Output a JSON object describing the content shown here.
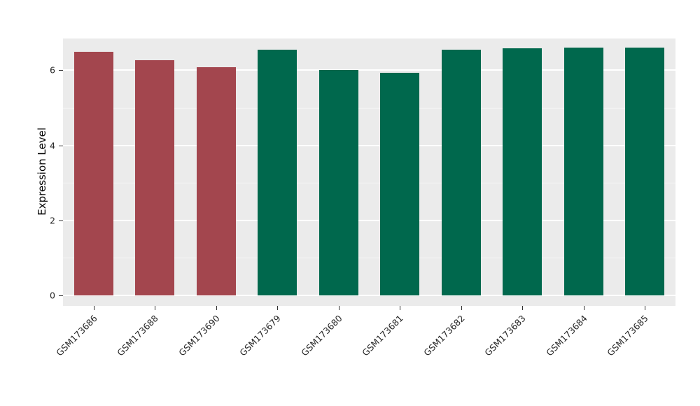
{
  "chart_data": {
    "type": "bar",
    "title": "",
    "xlabel": "",
    "ylabel": "Expression Level",
    "categories": [
      "GSM173686",
      "GSM173688",
      "GSM173690",
      "GSM173679",
      "GSM173680",
      "GSM173681",
      "GSM173682",
      "GSM173683",
      "GSM173684",
      "GSM173685"
    ],
    "values": [
      6.5,
      6.26,
      6.09,
      6.55,
      6.0,
      5.94,
      6.55,
      6.58,
      6.6,
      6.6
    ],
    "bar_colors": [
      "#A3464E",
      "#A3464E",
      "#A3464E",
      "#00684D",
      "#00684D",
      "#00684D",
      "#00684D",
      "#00684D",
      "#00684D",
      "#00684D"
    ],
    "color_legend": {
      "red_group": "#A3464E",
      "green_group": "#00684D"
    },
    "yticks": [
      0,
      2,
      4,
      6
    ],
    "yticks_minor": [
      1,
      3,
      5
    ],
    "ylim": [
      0,
      6.84
    ],
    "grid": "on",
    "legend_position": "none",
    "plot_background": "#ebebeb",
    "figure_background": "#ffffff",
    "grid_color": "#ffffff"
  }
}
